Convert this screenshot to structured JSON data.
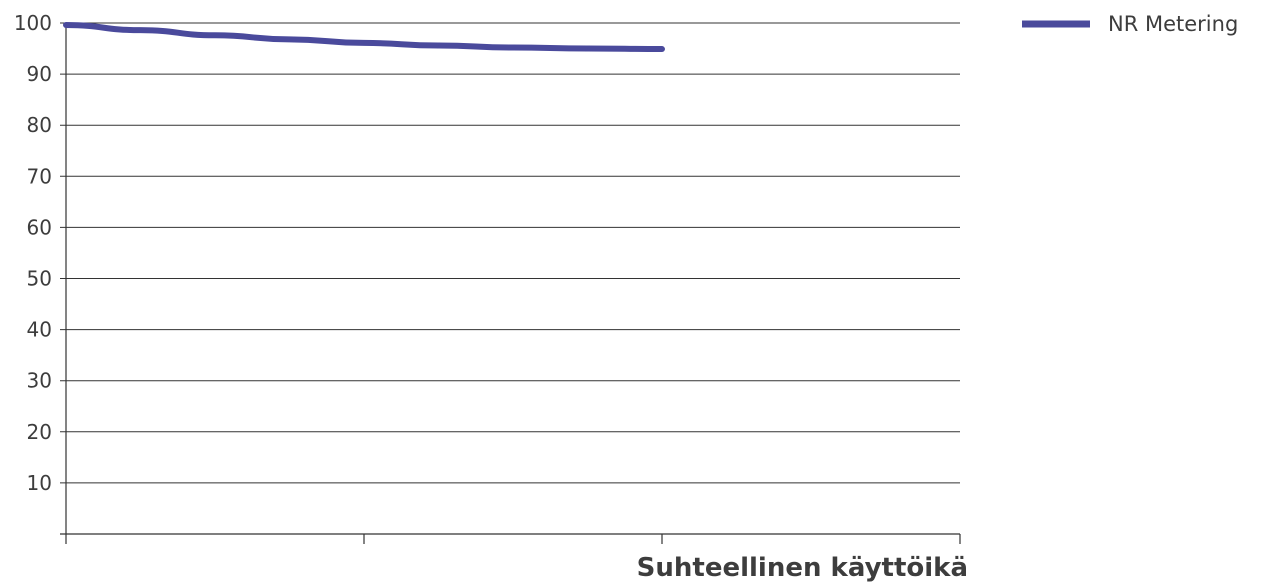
{
  "chart_data": {
    "type": "line",
    "xlabel": "Suhteellinen käyttöikä",
    "ylabel": "",
    "title": "",
    "x": [
      0,
      1,
      2,
      3,
      4,
      5,
      6,
      7,
      8
    ],
    "xlim": [
      0,
      12
    ],
    "ylim": [
      0,
      100
    ],
    "yticks": [
      10,
      20,
      30,
      40,
      50,
      60,
      70,
      80,
      90,
      100
    ],
    "x_tick_count": 3,
    "grid": true,
    "legend_position": "top-right",
    "series": [
      {
        "name": "NR Metering",
        "color": "#4a4a9c",
        "values": [
          99.6,
          98.6,
          97.6,
          96.8,
          96.1,
          95.6,
          95.2,
          95.0,
          94.9
        ]
      }
    ]
  }
}
